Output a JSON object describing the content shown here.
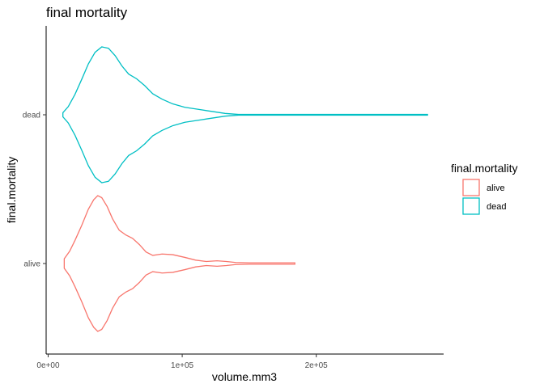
{
  "chart_data": {
    "type": "violin",
    "orientation": "horizontal",
    "title": "final mortality",
    "xlabel": "volume.mm3",
    "ylabel": "final.mortality",
    "xlim": [
      -1500,
      295000
    ],
    "x_ticks": [
      0,
      100000,
      200000
    ],
    "x_tick_labels": [
      "0e+00",
      "1e+05",
      "2e+05"
    ],
    "categories": [
      "alive",
      "dead"
    ],
    "grid": false,
    "legend": {
      "title": "final.mortality",
      "position": "right",
      "entries": [
        "alive",
        "dead"
      ]
    },
    "series": [
      {
        "name": "alive",
        "color": "#F8766D",
        "min": 12000,
        "max": 184000,
        "density": [
          [
            12000,
            0.07
          ],
          [
            16000,
            0.18
          ],
          [
            20000,
            0.34
          ],
          [
            25000,
            0.56
          ],
          [
            30000,
            0.8
          ],
          [
            34000,
            0.94
          ],
          [
            37000,
            1.0
          ],
          [
            40000,
            0.97
          ],
          [
            44000,
            0.84
          ],
          [
            48000,
            0.66
          ],
          [
            53000,
            0.49
          ],
          [
            58000,
            0.42
          ],
          [
            63000,
            0.37
          ],
          [
            68000,
            0.28
          ],
          [
            73000,
            0.17
          ],
          [
            78000,
            0.12
          ],
          [
            85000,
            0.14
          ],
          [
            93000,
            0.13
          ],
          [
            102000,
            0.09
          ],
          [
            110000,
            0.05
          ],
          [
            118000,
            0.03
          ],
          [
            126000,
            0.04
          ],
          [
            133000,
            0.03
          ],
          [
            140000,
            0.015
          ],
          [
            150000,
            0.01
          ],
          [
            165000,
            0.01
          ],
          [
            184000,
            0.01
          ]
        ]
      },
      {
        "name": "dead",
        "color": "#00BFC4",
        "min": 11000,
        "max": 283000,
        "density": [
          [
            11000,
            0.03
          ],
          [
            15000,
            0.12
          ],
          [
            20000,
            0.3
          ],
          [
            25000,
            0.52
          ],
          [
            30000,
            0.75
          ],
          [
            35000,
            0.92
          ],
          [
            40000,
            1.0
          ],
          [
            45000,
            0.98
          ],
          [
            50000,
            0.87
          ],
          [
            55000,
            0.72
          ],
          [
            60000,
            0.6
          ],
          [
            66000,
            0.53
          ],
          [
            72000,
            0.43
          ],
          [
            78000,
            0.31
          ],
          [
            85000,
            0.23
          ],
          [
            93000,
            0.16
          ],
          [
            102000,
            0.11
          ],
          [
            112000,
            0.08
          ],
          [
            122000,
            0.05
          ],
          [
            132000,
            0.02
          ],
          [
            142000,
            0.005
          ],
          [
            200000,
            0.005
          ],
          [
            283000,
            0.005
          ]
        ]
      }
    ]
  }
}
